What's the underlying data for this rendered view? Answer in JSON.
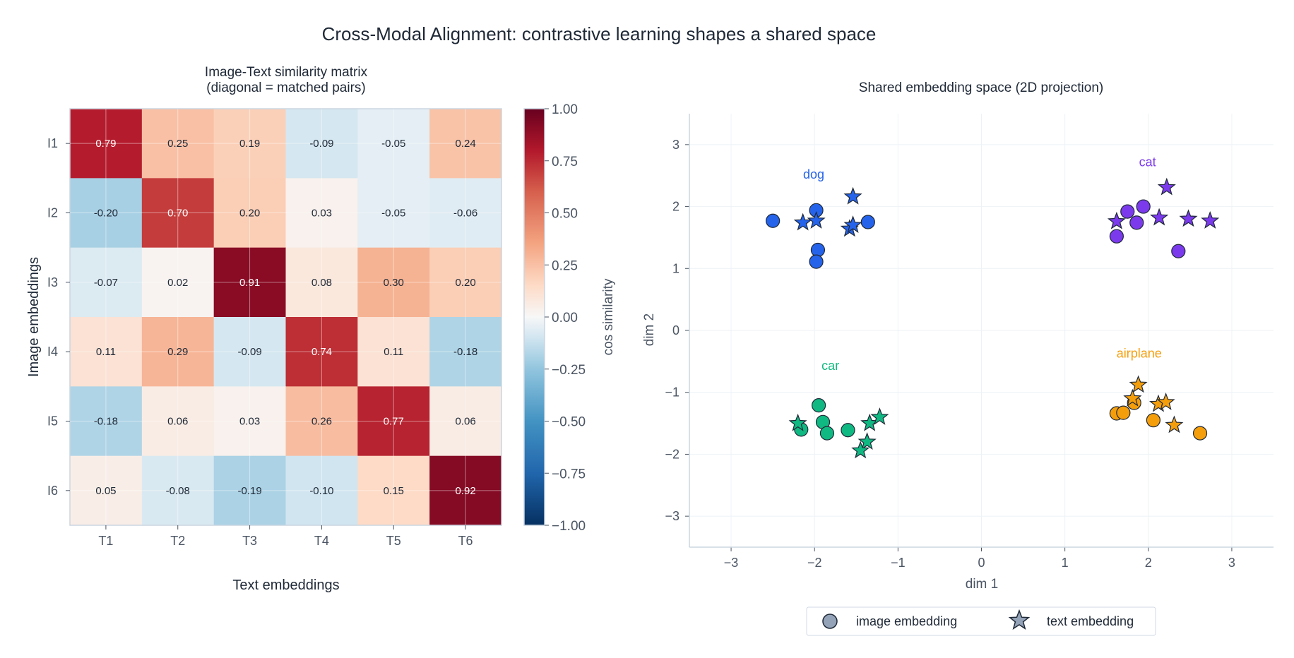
{
  "suptitle": "Cross-Modal Alignment: contrastive learning shapes a shared space",
  "chart_data": [
    {
      "type": "heatmap",
      "title_line1": "Image-Text similarity matrix",
      "title_line2": "(diagonal = matched pairs)",
      "xlabel": "Text embeddings",
      "ylabel": "Image embeddings",
      "x_categories": [
        "T1",
        "T2",
        "T3",
        "T4",
        "T5",
        "T6"
      ],
      "y_categories": [
        "I1",
        "I2",
        "I3",
        "I4",
        "I5",
        "I6"
      ],
      "values": [
        [
          0.79,
          0.25,
          0.19,
          -0.09,
          -0.05,
          0.24
        ],
        [
          -0.2,
          0.7,
          0.2,
          0.03,
          -0.05,
          -0.06
        ],
        [
          -0.07,
          0.02,
          0.91,
          0.08,
          0.3,
          0.2
        ],
        [
          0.11,
          0.29,
          -0.09,
          0.74,
          0.11,
          -0.18
        ],
        [
          -0.18,
          0.06,
          0.03,
          0.26,
          0.77,
          0.06
        ],
        [
          0.05,
          -0.08,
          -0.19,
          -0.1,
          0.15,
          0.92
        ]
      ],
      "colormap": "RdBu_r",
      "colorbar": {
        "label": "cos similarity",
        "range": [
          -1,
          1
        ],
        "ticks": [
          "1.00",
          "0.75",
          "0.50",
          "0.25",
          "0.00",
          "−0.25",
          "−0.50",
          "−0.75",
          "−1.00"
        ],
        "tick_values": [
          1,
          0.75,
          0.5,
          0.25,
          0,
          -0.25,
          -0.5,
          -0.75,
          -1
        ]
      }
    },
    {
      "type": "scatter",
      "title": "Shared embedding space (2D projection)",
      "xlabel": "dim 1",
      "ylabel": "dim 2",
      "xlim": [
        -3.5,
        3.5
      ],
      "ylim": [
        -3.5,
        3.5
      ],
      "xticks": [
        -3,
        -2,
        -1,
        0,
        1,
        2,
        3
      ],
      "yticks": [
        -3,
        -2,
        -1,
        0,
        1,
        2,
        3
      ],
      "grid": true,
      "legend": {
        "placement": "bottom-center",
        "entries": [
          "image embedding",
          "text embedding"
        ]
      },
      "clusters": [
        {
          "label": "dog",
          "color": "#2563eb",
          "label_pos": [
            -2.01,
            2.52
          ],
          "image": [
            [
              -2.5,
              1.77
            ],
            [
              -1.98,
              1.94
            ],
            [
              -1.96,
              1.3
            ],
            [
              -1.98,
              1.11
            ],
            [
              -1.36,
              1.75
            ]
          ],
          "text": [
            [
              -2.14,
              1.74
            ],
            [
              -1.98,
              1.77
            ],
            [
              -1.54,
              2.16
            ],
            [
              -1.58,
              1.64
            ],
            [
              -1.54,
              1.7
            ]
          ]
        },
        {
          "label": "cat",
          "color": "#7c3aed",
          "label_pos": [
            1.99,
            2.72
          ],
          "image": [
            [
              1.75,
              1.92
            ],
            [
              1.94,
              2.0
            ],
            [
              1.86,
              1.74
            ],
            [
              1.62,
              1.52
            ],
            [
              2.36,
              1.28
            ]
          ],
          "text": [
            [
              1.62,
              1.76
            ],
            [
              2.22,
              2.31
            ],
            [
              2.13,
              1.82
            ],
            [
              2.48,
              1.8
            ],
            [
              2.74,
              1.77
            ]
          ]
        },
        {
          "label": "car",
          "color": "#10b981",
          "label_pos": [
            -1.81,
            -0.57
          ],
          "image": [
            [
              -1.95,
              -1.21
            ],
            [
              -1.9,
              -1.48
            ],
            [
              -2.16,
              -1.6
            ],
            [
              -1.85,
              -1.66
            ],
            [
              -1.6,
              -1.61
            ]
          ],
          "text": [
            [
              -2.2,
              -1.5
            ],
            [
              -1.34,
              -1.5
            ],
            [
              -1.22,
              -1.4
            ],
            [
              -1.37,
              -1.8
            ],
            [
              -1.45,
              -1.94
            ]
          ]
        },
        {
          "label": "airplane",
          "color": "#f59e0b",
          "label_pos": [
            1.89,
            -0.37
          ],
          "image": [
            [
              1.62,
              -1.34
            ],
            [
              1.7,
              -1.33
            ],
            [
              1.83,
              -1.17
            ],
            [
              2.06,
              -1.45
            ],
            [
              2.62,
              -1.66
            ]
          ],
          "text": [
            [
              1.88,
              -0.88
            ],
            [
              1.81,
              -1.1
            ],
            [
              2.12,
              -1.19
            ],
            [
              2.21,
              -1.16
            ],
            [
              2.31,
              -1.53
            ]
          ]
        }
      ]
    }
  ]
}
